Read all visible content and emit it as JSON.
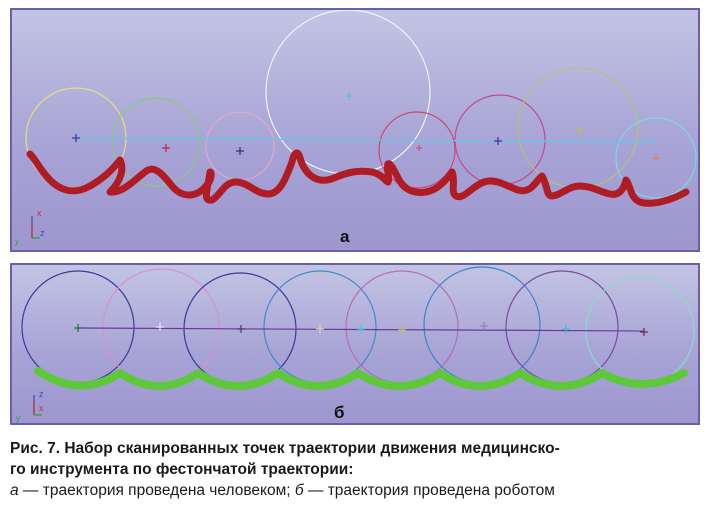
{
  "panel_a": {
    "label": "а"
  },
  "panel_b": {
    "label": "б"
  },
  "caption": {
    "line1": "Рис. 7. Набор сканированных точек траектории движения медицинско-",
    "line2": "го инструмента по фестончатой траектории:",
    "line3_letter_a": "а",
    "line3_text_a": " — траектория проведена человеком; ",
    "line3_letter_b": "б",
    "line3_text_b": " — траектория проведена роботом"
  },
  "colors": {
    "human_path": "#b01c24",
    "robot_path": "#5ec83a",
    "background": "#aaa6d8"
  }
}
